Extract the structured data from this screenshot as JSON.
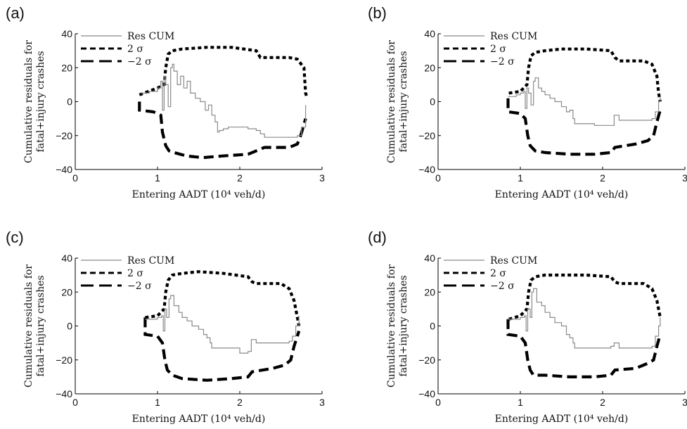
{
  "shared_labels": {
    "xlabel": "Entering AADT (10⁴ veh/d)",
    "ylabel_line1": "Cumulative residuals for",
    "ylabel_line2": "fatal+injury crashes",
    "legend": [
      "Res CUM",
      "2 σ",
      "−2 σ"
    ]
  },
  "chart_data": [
    {
      "type": "line",
      "panel": "(a)",
      "xlabel": "Entering AADT (10⁴ veh/d)",
      "ylabel": "Cumulative residuals for fatal+injury crashes",
      "xlim": [
        0,
        3
      ],
      "ylim": [
        -40,
        40
      ],
      "xticks": [
        0,
        1,
        2,
        3
      ],
      "yticks": [
        -40,
        -20,
        0,
        20,
        40
      ],
      "series": [
        {
          "name": "Res CUM",
          "style": "solid-gray",
          "x": [
            0.8,
            0.9,
            1.0,
            1.04,
            1.06,
            1.08,
            1.1,
            1.13,
            1.16,
            1.18,
            1.2,
            1.24,
            1.28,
            1.32,
            1.36,
            1.4,
            1.46,
            1.52,
            1.58,
            1.62,
            1.66,
            1.7,
            1.73,
            1.75,
            1.8,
            1.86,
            1.92,
            2.0,
            2.1,
            2.2,
            2.25,
            2.3,
            2.4,
            2.5,
            2.6,
            2.7,
            2.75,
            2.8
          ],
          "y": [
            5,
            6,
            8,
            12,
            -5,
            15,
            10,
            -3,
            20,
            22,
            18,
            10,
            15,
            8,
            12,
            5,
            2,
            0,
            -5,
            -2,
            -8,
            -12,
            -18,
            -17,
            -16,
            -15,
            -15,
            -15,
            -16,
            -17,
            -19,
            -21,
            -21,
            -21,
            -21,
            -20,
            -15,
            -2
          ]
        },
        {
          "name": "2 σ",
          "style": "short-dash",
          "x": [
            0.78,
            1.0,
            1.08,
            1.1,
            1.13,
            1.18,
            1.3,
            1.6,
            1.9,
            2.2,
            2.25,
            2.3,
            2.6,
            2.7,
            2.78,
            2.8,
            2.82
          ],
          "y": [
            4,
            8,
            10,
            20,
            28,
            30,
            31,
            32,
            32,
            30,
            26,
            26,
            26,
            25,
            20,
            5,
            2
          ]
        },
        {
          "name": "−2 σ",
          "style": "long-dash",
          "x": [
            0.78,
            0.78,
            0.95,
            1.04,
            1.06,
            1.1,
            1.14,
            1.2,
            1.35,
            1.55,
            1.8,
            2.1,
            2.25,
            2.3,
            2.6,
            2.7,
            2.74,
            2.8
          ],
          "y": [
            0,
            -5,
            -6,
            -8,
            -18,
            -26,
            -29,
            -30,
            -32,
            -33,
            -32,
            -31,
            -28,
            -27,
            -27,
            -25,
            -20,
            -10
          ]
        }
      ]
    },
    {
      "type": "line",
      "panel": "(b)",
      "xlabel": "Entering AADT (10⁴ veh/d)",
      "ylabel": "Cumulative residuals for fatal+injury crashes",
      "xlim": [
        0,
        3
      ],
      "ylim": [
        -40,
        40
      ],
      "xticks": [
        0,
        1,
        2,
        3
      ],
      "yticks": [
        -40,
        -20,
        0,
        20,
        40
      ],
      "series": [
        {
          "name": "Res CUM",
          "style": "solid-gray",
          "x": [
            0.85,
            0.95,
            1.0,
            1.04,
            1.06,
            1.08,
            1.1,
            1.13,
            1.16,
            1.18,
            1.22,
            1.26,
            1.3,
            1.36,
            1.42,
            1.5,
            1.56,
            1.6,
            1.64,
            1.66,
            1.7,
            1.8,
            1.9,
            2.0,
            2.1,
            2.14,
            2.2,
            2.3,
            2.4,
            2.5,
            2.6,
            2.64,
            2.68,
            2.7
          ],
          "y": [
            3,
            4,
            5,
            6,
            -4,
            8,
            5,
            -2,
            12,
            14,
            8,
            6,
            4,
            2,
            0,
            -3,
            -6,
            -5,
            -10,
            -13,
            -13,
            -13,
            -14,
            -14,
            -14,
            -8,
            -11,
            -11,
            -11,
            -11,
            -10,
            -6,
            0,
            3
          ]
        },
        {
          "name": "2 σ",
          "style": "short-dash",
          "x": [
            0.86,
            1.0,
            1.08,
            1.1,
            1.13,
            1.18,
            1.3,
            1.5,
            1.8,
            2.1,
            2.15,
            2.2,
            2.5,
            2.6,
            2.66,
            2.68,
            2.7
          ],
          "y": [
            5,
            6,
            10,
            20,
            27,
            29,
            30,
            31,
            31,
            30,
            26,
            24,
            24,
            22,
            15,
            5,
            0
          ]
        },
        {
          "name": "−2 σ",
          "style": "long-dash",
          "x": [
            0.85,
            0.85,
            1.0,
            1.06,
            1.09,
            1.12,
            1.18,
            1.3,
            1.6,
            1.9,
            2.1,
            2.15,
            2.4,
            2.55,
            2.62,
            2.66,
            2.7
          ],
          "y": [
            2,
            -6,
            -7,
            -10,
            -20,
            -26,
            -29,
            -30,
            -31,
            -31,
            -30,
            -27,
            -25,
            -23,
            -20,
            -12,
            -5
          ]
        }
      ]
    },
    {
      "type": "line",
      "panel": "(c)",
      "xlabel": "Entering AADT (10⁴ veh/d)",
      "ylabel": "Cumulative residuals for fatal+injury crashes",
      "xlim": [
        0,
        3
      ],
      "ylim": [
        -40,
        40
      ],
      "xticks": [
        0,
        1,
        2,
        3
      ],
      "yticks": [
        -40,
        -20,
        0,
        20,
        40
      ],
      "series": [
        {
          "name": "Res CUM",
          "style": "solid-gray",
          "x": [
            0.85,
            1.0,
            1.05,
            1.07,
            1.09,
            1.11,
            1.14,
            1.16,
            1.2,
            1.26,
            1.3,
            1.36,
            1.42,
            1.5,
            1.56,
            1.6,
            1.64,
            1.66,
            1.7,
            1.8,
            1.9,
            2.0,
            2.05,
            2.1,
            2.14,
            2.2,
            2.3,
            2.4,
            2.5,
            2.6,
            2.64,
            2.68,
            2.72
          ],
          "y": [
            4,
            5,
            6,
            -3,
            10,
            5,
            16,
            18,
            12,
            8,
            5,
            3,
            0,
            -2,
            -5,
            -7,
            -10,
            -13,
            -13,
            -13,
            -13,
            -16,
            -16,
            -15,
            -8,
            -10,
            -10,
            -10,
            -10,
            -9,
            -6,
            0,
            6
          ]
        },
        {
          "name": "2 σ",
          "style": "short-dash",
          "x": [
            0.85,
            1.0,
            1.08,
            1.1,
            1.13,
            1.18,
            1.3,
            1.5,
            1.8,
            2.1,
            2.15,
            2.2,
            2.5,
            2.6,
            2.66,
            2.7,
            2.72
          ],
          "y": [
            5,
            6,
            10,
            20,
            27,
            30,
            31,
            32,
            31,
            29,
            26,
            25,
            25,
            22,
            15,
            5,
            0
          ]
        },
        {
          "name": "−2 σ",
          "style": "long-dash",
          "x": [
            0.85,
            0.85,
            1.0,
            1.06,
            1.09,
            1.12,
            1.18,
            1.3,
            1.6,
            1.9,
            2.1,
            2.15,
            2.4,
            2.55,
            2.62,
            2.66,
            2.72
          ],
          "y": [
            5,
            -5,
            -6,
            -10,
            -20,
            -26,
            -29,
            -31,
            -32,
            -31,
            -30,
            -27,
            -25,
            -23,
            -20,
            -12,
            -3
          ]
        }
      ]
    },
    {
      "type": "line",
      "panel": "(d)",
      "xlabel": "Entering AADT (10⁴ veh/d)",
      "ylabel": "Cumulative residuals for fatal+injury crashes",
      "xlim": [
        0,
        3
      ],
      "ylim": [
        -40,
        40
      ],
      "xticks": [
        0,
        1,
        2,
        3
      ],
      "yticks": [
        -40,
        -20,
        0,
        20,
        40
      ],
      "series": [
        {
          "name": "Res CUM",
          "style": "solid-gray",
          "x": [
            0.85,
            1.0,
            1.05,
            1.07,
            1.09,
            1.12,
            1.14,
            1.16,
            1.2,
            1.26,
            1.3,
            1.36,
            1.42,
            1.5,
            1.56,
            1.6,
            1.64,
            1.66,
            1.7,
            1.8,
            1.9,
            2.0,
            2.1,
            2.14,
            2.2,
            2.3,
            2.4,
            2.5,
            2.6,
            2.64,
            2.68,
            2.7
          ],
          "y": [
            4,
            5,
            6,
            -3,
            10,
            5,
            20,
            22,
            14,
            12,
            8,
            5,
            2,
            0,
            -5,
            -7,
            -10,
            -13,
            -13,
            -13,
            -13,
            -13,
            -12,
            -10,
            -13,
            -13,
            -13,
            -13,
            -12,
            -6,
            0,
            5
          ]
        },
        {
          "name": "2 σ",
          "style": "short-dash",
          "x": [
            0.86,
            1.0,
            1.08,
            1.1,
            1.13,
            1.18,
            1.3,
            1.5,
            1.8,
            2.1,
            2.15,
            2.2,
            2.5,
            2.6,
            2.66,
            2.7
          ],
          "y": [
            4,
            6,
            10,
            20,
            27,
            29,
            30,
            30,
            30,
            29,
            26,
            25,
            25,
            22,
            15,
            5
          ]
        },
        {
          "name": "−2 σ",
          "style": "long-dash",
          "x": [
            0.85,
            0.85,
            1.0,
            1.06,
            1.09,
            1.12,
            1.16,
            1.3,
            1.6,
            1.9,
            2.1,
            2.15,
            2.4,
            2.55,
            2.62,
            2.66,
            2.7
          ],
          "y": [
            4,
            -5,
            -6,
            -10,
            -20,
            -26,
            -29,
            -29,
            -30,
            -30,
            -29,
            -26,
            -25,
            -22,
            -20,
            -12,
            -5
          ]
        }
      ]
    }
  ]
}
